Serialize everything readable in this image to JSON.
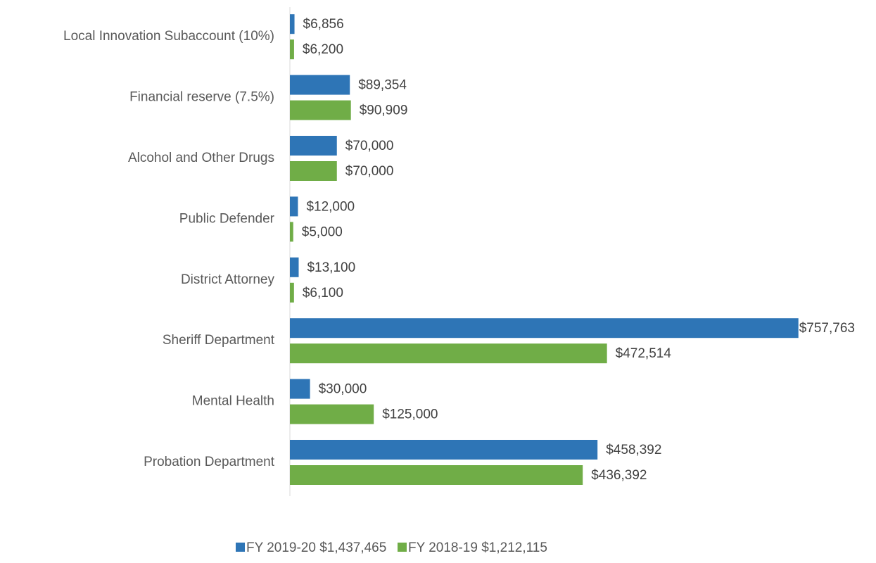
{
  "chart_data": {
    "type": "hbar",
    "categories": [
      "Local Innovation Subaccount (10%)",
      "Financial reserve (7.5%)",
      "Alcohol and Other Drugs",
      "Public Defender",
      "District Attorney",
      "Sheriff Department",
      "Mental Health",
      "Probation Department"
    ],
    "series": [
      {
        "name": "FY 2019-20 $1,437,465",
        "color": "#2e75b6",
        "values": [
          6856,
          89354,
          70000,
          12000,
          13100,
          757763,
          30000,
          458392
        ],
        "value_labels": [
          "$6,856",
          "$89,354",
          "$70,000",
          "$12,000",
          "$13,100",
          "$757,763",
          "$30,000",
          "$458,392"
        ]
      },
      {
        "name": "FY 2018-19 $1,212,115",
        "color": "#70ad47",
        "values": [
          6200,
          90909,
          70000,
          5000,
          6100,
          472514,
          125000,
          436392
        ],
        "value_labels": [
          "$6,200",
          "$90,909",
          "$70,000",
          "$5,000",
          "$6,100",
          "$472,514",
          "$125,000",
          "$436,392"
        ]
      }
    ],
    "xlim": [
      0,
      800000
    ],
    "legend": "bottom"
  }
}
